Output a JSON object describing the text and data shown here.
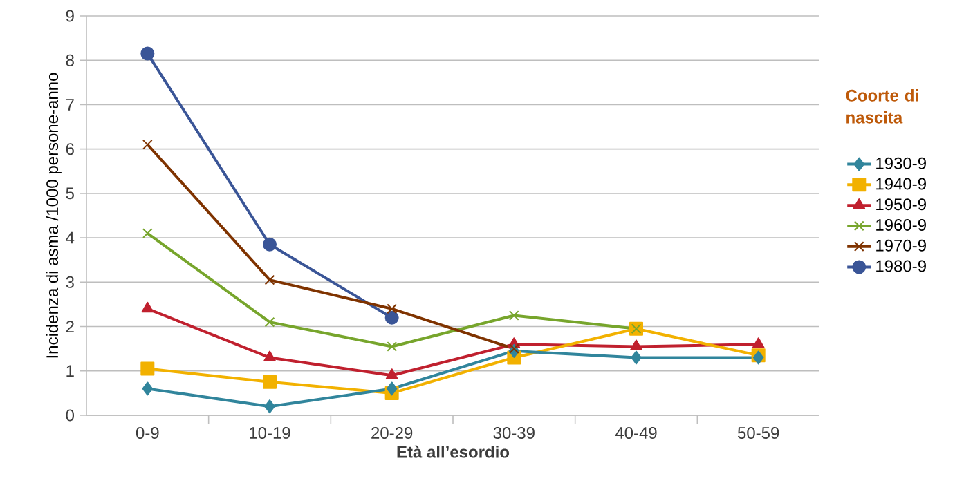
{
  "chart_data": {
    "type": "line",
    "xlabel": "Età all’esordio",
    "ylabel": "Incidenza di asma /1000 persone-anno",
    "legend_title": "Coorte di nascita",
    "categories": [
      "0-9",
      "10-19",
      "20-29",
      "30-39",
      "40-49",
      "50-59"
    ],
    "ylim": [
      0,
      9
    ],
    "yticks": [
      0,
      1,
      2,
      3,
      4,
      5,
      6,
      7,
      8,
      9
    ],
    "grid": "y",
    "legend": "right",
    "series": [
      {
        "name": "1930-9",
        "color": "#31859c",
        "marker": "diamond",
        "values": [
          0.6,
          0.2,
          0.6,
          1.45,
          1.3,
          1.3
        ]
      },
      {
        "name": "1940-9",
        "color": "#f2b100",
        "marker": "square",
        "values": [
          1.05,
          0.75,
          0.5,
          1.3,
          1.95,
          1.35
        ]
      },
      {
        "name": "1950-9",
        "color": "#c0202e",
        "marker": "triangle",
        "values": [
          2.4,
          1.3,
          0.9,
          1.6,
          1.55,
          1.6
        ]
      },
      {
        "name": "1960-9",
        "color": "#77a52c",
        "marker": "cross",
        "values": [
          4.1,
          2.1,
          1.55,
          2.25,
          1.95,
          null
        ]
      },
      {
        "name": "1970-9",
        "color": "#7f3300",
        "marker": "cross",
        "values": [
          6.1,
          3.05,
          2.4,
          1.5,
          null,
          null
        ]
      },
      {
        "name": "1980-9",
        "color": "#3a5597",
        "marker": "circle",
        "values": [
          8.15,
          3.85,
          2.2,
          null,
          null,
          null
        ]
      }
    ]
  }
}
